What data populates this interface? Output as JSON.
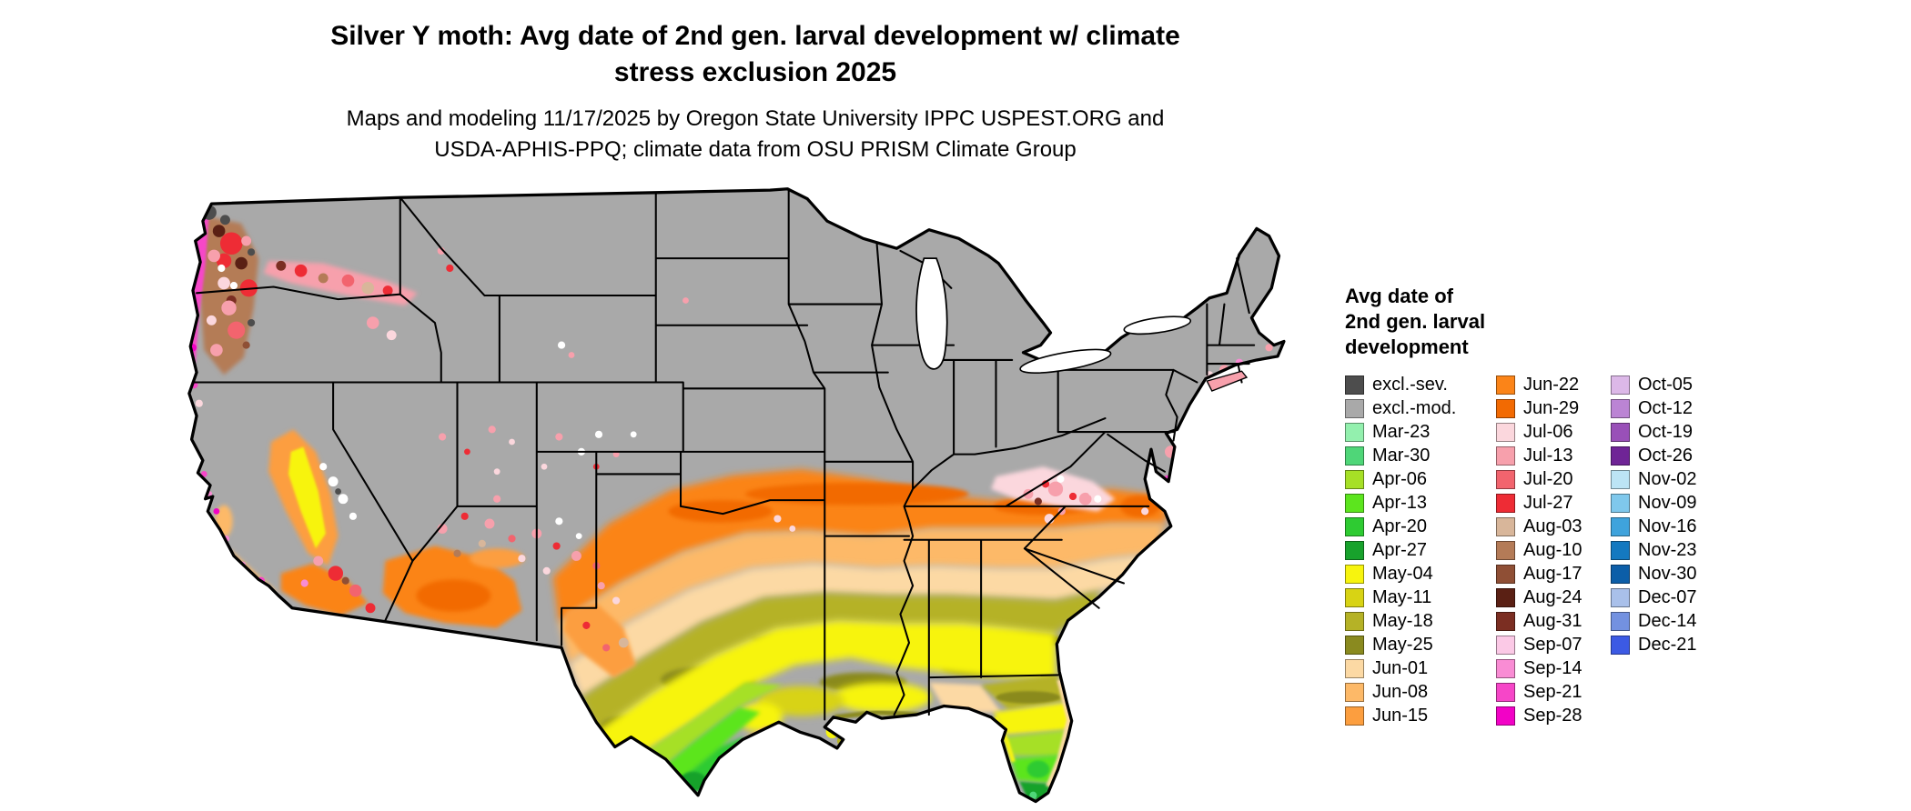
{
  "header": {
    "title_lines": [
      "Silver Y moth: Avg date of 2nd gen. larval development w/ climate",
      "stress exclusion 2025"
    ],
    "subtitle_lines": [
      "Maps and modeling 11/17/2025 by Oregon State University IPPC USPEST.ORG and",
      "USDA-APHIS-PPQ; climate data from OSU PRISM Climate Group"
    ]
  },
  "legend": {
    "title_lines": [
      "Avg date of",
      "2nd gen. larval",
      "development"
    ],
    "columns": [
      {
        "entries": [
          {
            "label": "excl.-sev.",
            "color": "#4d4d4d"
          },
          {
            "label": "excl.-mod.",
            "color": "#a9a9a9"
          },
          {
            "label": "Mar-23",
            "color": "#93f0ae"
          },
          {
            "label": "Mar-30",
            "color": "#4fd678"
          },
          {
            "label": "Apr-06",
            "color": "#a6e026"
          },
          {
            "label": "Apr-13",
            "color": "#5ce51e"
          },
          {
            "label": "Apr-20",
            "color": "#2ecb32"
          },
          {
            "label": "Apr-27",
            "color": "#18a22c"
          },
          {
            "label": "May-04",
            "color": "#f7f40e"
          },
          {
            "label": "May-11",
            "color": "#d8d314"
          },
          {
            "label": "May-18",
            "color": "#b5b226"
          },
          {
            "label": "May-25",
            "color": "#8a8a1f"
          },
          {
            "label": "Jun-01",
            "color": "#fcd9a4"
          },
          {
            "label": "Jun-08",
            "color": "#fdb968"
          },
          {
            "label": "Jun-15",
            "color": "#fc9e3f"
          }
        ]
      },
      {
        "entries": [
          {
            "label": "Jun-22",
            "color": "#fb8418"
          },
          {
            "label": "Jun-29",
            "color": "#f26a02"
          },
          {
            "label": "Jul-06",
            "color": "#fbd7dd"
          },
          {
            "label": "Jul-13",
            "color": "#f7a0ac"
          },
          {
            "label": "Jul-20",
            "color": "#f2646e"
          },
          {
            "label": "Jul-27",
            "color": "#ee2c35"
          },
          {
            "label": "Aug-03",
            "color": "#d8b69a"
          },
          {
            "label": "Aug-10",
            "color": "#b47b57"
          },
          {
            "label": "Aug-17",
            "color": "#8f4f35"
          },
          {
            "label": "Aug-24",
            "color": "#5a2014"
          },
          {
            "label": "Aug-31",
            "color": "#7b2e22"
          },
          {
            "label": "Sep-07",
            "color": "#fbc9e6"
          },
          {
            "label": "Sep-14",
            "color": "#f98cd4"
          },
          {
            "label": "Sep-21",
            "color": "#f646c8"
          },
          {
            "label": "Sep-28",
            "color": "#f202c6"
          }
        ]
      },
      {
        "entries": [
          {
            "label": "Oct-05",
            "color": "#dcb8e8"
          },
          {
            "label": "Oct-12",
            "color": "#bb84d4"
          },
          {
            "label": "Oct-19",
            "color": "#9950b8"
          },
          {
            "label": "Oct-26",
            "color": "#6f2496"
          },
          {
            "label": "Nov-02",
            "color": "#bce4f5"
          },
          {
            "label": "Nov-09",
            "color": "#7fc8ec"
          },
          {
            "label": "Nov-16",
            "color": "#3fa3dc"
          },
          {
            "label": "Nov-23",
            "color": "#1479c0"
          },
          {
            "label": "Nov-30",
            "color": "#0c5ea8"
          },
          {
            "label": "Dec-07",
            "color": "#a9c0ea"
          },
          {
            "label": "Dec-14",
            "color": "#7391e0"
          },
          {
            "label": "Dec-21",
            "color": "#3c5ae4"
          }
        ]
      }
    ]
  }
}
